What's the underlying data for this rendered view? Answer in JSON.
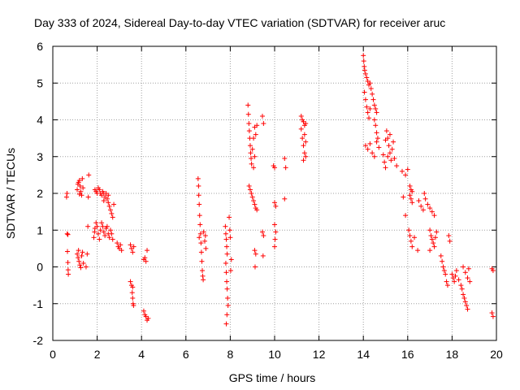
{
  "chart_data": {
    "type": "scatter",
    "title": "Day 333 of 2024, Sidereal Day-to-day VTEC variation (SDTVAR) for receiver aruc",
    "xlabel": "GPS time / hours",
    "ylabel": "SDTVAR / TECUs",
    "xlim": [
      0,
      20
    ],
    "ylim": [
      -2,
      6
    ],
    "xticks": [
      0,
      2,
      4,
      6,
      8,
      10,
      12,
      14,
      16,
      18,
      20
    ],
    "xtick_labels": [
      "0",
      "2",
      "4",
      "6",
      "8",
      "10",
      "12",
      "14",
      "16",
      "18",
      "20"
    ],
    "yticks": [
      -2,
      -1,
      0,
      1,
      2,
      3,
      4,
      5,
      6
    ],
    "ytick_labels": [
      "-2",
      "-1",
      "0",
      "1",
      "2",
      "3",
      "4",
      "5",
      "6"
    ],
    "grid": true,
    "marker": "+",
    "color": "#ff0000",
    "series": [
      {
        "name": "SDTVAR",
        "points": [
          [
            0.62,
            1.9
          ],
          [
            0.64,
            2.0
          ],
          [
            0.65,
            0.9
          ],
          [
            0.66,
            0.42
          ],
          [
            0.68,
            0.12
          ],
          [
            0.69,
            -0.08
          ],
          [
            0.7,
            -0.2
          ],
          [
            0.68,
            0.88
          ],
          [
            1.1,
            2.1
          ],
          [
            1.13,
            2.25
          ],
          [
            1.16,
            2.3
          ],
          [
            1.2,
            2.35
          ],
          [
            1.23,
            2.2
          ],
          [
            1.26,
            2.05
          ],
          [
            1.3,
            1.95
          ],
          [
            1.33,
            2.4
          ],
          [
            1.36,
            2.15
          ],
          [
            1.2,
            1.98
          ],
          [
            1.1,
            0.35
          ],
          [
            1.14,
            0.25
          ],
          [
            1.18,
            0.15
          ],
          [
            1.22,
            0.05
          ],
          [
            1.26,
            -0.02
          ],
          [
            1.3,
            0.3
          ],
          [
            1.34,
            0.4
          ],
          [
            1.16,
            0.45
          ],
          [
            1.38,
            0.1
          ],
          [
            1.5,
            0.0
          ],
          [
            1.55,
            0.35
          ],
          [
            1.58,
            1.1
          ],
          [
            1.6,
            1.9
          ],
          [
            1.62,
            2.5
          ],
          [
            1.9,
            2.1
          ],
          [
            1.95,
            2.05
          ],
          [
            2.0,
            2.0
          ],
          [
            2.05,
            2.15
          ],
          [
            2.1,
            2.1
          ],
          [
            2.15,
            2.0
          ],
          [
            2.2,
            1.95
          ],
          [
            2.25,
            2.05
          ],
          [
            2.3,
            2.0
          ],
          [
            2.35,
            1.9
          ],
          [
            2.4,
            2.0
          ],
          [
            2.45,
            1.85
          ],
          [
            2.5,
            1.75
          ],
          [
            2.55,
            1.65
          ],
          [
            2.6,
            1.55
          ],
          [
            2.65,
            1.45
          ],
          [
            2.7,
            1.35
          ],
          [
            2.75,
            1.7
          ],
          [
            2.3,
            1.8
          ],
          [
            2.5,
            1.95
          ],
          [
            1.85,
            0.8
          ],
          [
            1.88,
            0.95
          ],
          [
            1.9,
            1.05
          ],
          [
            1.95,
            1.2
          ],
          [
            2.0,
            1.1
          ],
          [
            2.05,
            0.9
          ],
          [
            2.1,
            0.75
          ],
          [
            2.15,
            1.0
          ],
          [
            2.2,
            1.2
          ],
          [
            2.25,
            1.1
          ],
          [
            2.3,
            0.95
          ],
          [
            2.35,
            0.85
          ],
          [
            2.4,
            1.05
          ],
          [
            2.45,
            1.1
          ],
          [
            2.5,
            0.9
          ],
          [
            2.55,
            0.8
          ],
          [
            2.6,
            1.0
          ],
          [
            2.65,
            0.9
          ],
          [
            2.7,
            0.75
          ],
          [
            2.9,
            0.65
          ],
          [
            2.95,
            0.55
          ],
          [
            3.0,
            0.5
          ],
          [
            3.05,
            0.6
          ],
          [
            3.1,
            0.45
          ],
          [
            3.5,
            0.6
          ],
          [
            3.55,
            0.5
          ],
          [
            3.6,
            0.4
          ],
          [
            3.65,
            0.55
          ],
          [
            3.5,
            -0.4
          ],
          [
            3.55,
            -0.5
          ],
          [
            3.6,
            -0.55
          ],
          [
            3.58,
            -0.7
          ],
          [
            3.6,
            -0.85
          ],
          [
            3.62,
            -1.0
          ],
          [
            3.64,
            -1.05
          ],
          [
            4.1,
            -1.2
          ],
          [
            4.15,
            -1.3
          ],
          [
            4.2,
            -1.35
          ],
          [
            4.25,
            -1.45
          ],
          [
            4.3,
            -1.4
          ],
          [
            4.1,
            0.2
          ],
          [
            4.15,
            0.25
          ],
          [
            4.2,
            0.15
          ],
          [
            4.25,
            0.45
          ],
          [
            6.55,
            2.4
          ],
          [
            6.57,
            2.2
          ],
          [
            6.58,
            1.95
          ],
          [
            6.6,
            1.7
          ],
          [
            6.62,
            1.4
          ],
          [
            6.64,
            1.15
          ],
          [
            6.66,
            0.9
          ],
          [
            6.68,
            0.65
          ],
          [
            6.7,
            0.4
          ],
          [
            6.72,
            0.15
          ],
          [
            6.74,
            -0.1
          ],
          [
            6.76,
            -0.25
          ],
          [
            6.78,
            -0.35
          ],
          [
            6.6,
            0.8
          ],
          [
            6.8,
            0.95
          ],
          [
            6.85,
            0.7
          ],
          [
            6.9,
            0.5
          ],
          [
            6.88,
            0.85
          ],
          [
            7.78,
            1.1
          ],
          [
            7.8,
            0.9
          ],
          [
            7.82,
            0.75
          ],
          [
            7.84,
            0.55
          ],
          [
            7.86,
            0.35
          ],
          [
            7.8,
            0.1
          ],
          [
            7.82,
            -0.15
          ],
          [
            7.84,
            -0.4
          ],
          [
            7.86,
            -0.6
          ],
          [
            7.88,
            -0.85
          ],
          [
            7.9,
            -1.05
          ],
          [
            7.85,
            -1.3
          ],
          [
            7.82,
            -1.55
          ],
          [
            7.95,
            1.35
          ],
          [
            7.98,
            1.0
          ],
          [
            8.0,
            0.8
          ],
          [
            8.02,
            -0.1
          ],
          [
            8.05,
            0.2
          ],
          [
            8.8,
            4.4
          ],
          [
            8.82,
            4.15
          ],
          [
            8.84,
            3.9
          ],
          [
            8.86,
            3.7
          ],
          [
            8.88,
            3.5
          ],
          [
            8.9,
            3.3
          ],
          [
            8.92,
            3.1
          ],
          [
            8.94,
            2.95
          ],
          [
            8.96,
            2.8
          ],
          [
            9.0,
            3.2
          ],
          [
            9.05,
            3.5
          ],
          [
            9.1,
            3.8
          ],
          [
            9.15,
            3.6
          ],
          [
            9.2,
            3.85
          ],
          [
            9.05,
            2.7
          ],
          [
            9.1,
            3.0
          ],
          [
            8.85,
            2.2
          ],
          [
            8.9,
            2.1
          ],
          [
            8.95,
            2.0
          ],
          [
            9.0,
            1.9
          ],
          [
            9.05,
            1.8
          ],
          [
            9.1,
            1.7
          ],
          [
            9.15,
            1.6
          ],
          [
            9.2,
            1.55
          ],
          [
            9.1,
            0.45
          ],
          [
            9.15,
            0.35
          ],
          [
            9.12,
            0.0
          ],
          [
            9.45,
            4.1
          ],
          [
            9.5,
            3.9
          ],
          [
            9.45,
            0.95
          ],
          [
            9.5,
            0.85
          ],
          [
            9.48,
            0.3
          ],
          [
            9.95,
            2.75
          ],
          [
            10.0,
            2.7
          ],
          [
            10.0,
            1.75
          ],
          [
            10.05,
            1.65
          ],
          [
            10.0,
            1.15
          ],
          [
            10.05,
            0.95
          ],
          [
            10.02,
            0.75
          ],
          [
            10.0,
            0.55
          ],
          [
            10.45,
            2.95
          ],
          [
            10.5,
            2.7
          ],
          [
            10.45,
            1.85
          ],
          [
            11.2,
            4.1
          ],
          [
            11.25,
            4.0
          ],
          [
            11.3,
            3.95
          ],
          [
            11.35,
            3.85
          ],
          [
            11.4,
            3.9
          ],
          [
            11.2,
            3.75
          ],
          [
            11.25,
            3.5
          ],
          [
            11.3,
            3.3
          ],
          [
            11.35,
            3.1
          ],
          [
            11.4,
            3.4
          ],
          [
            11.3,
            2.9
          ],
          [
            11.35,
            3.6
          ],
          [
            11.4,
            3.0
          ],
          [
            14.0,
            5.75
          ],
          [
            14.02,
            5.6
          ],
          [
            14.04,
            5.45
          ],
          [
            14.06,
            5.35
          ],
          [
            14.1,
            5.25
          ],
          [
            14.15,
            5.15
          ],
          [
            14.2,
            5.05
          ],
          [
            14.25,
            4.95
          ],
          [
            14.3,
            5.0
          ],
          [
            14.35,
            4.85
          ],
          [
            14.4,
            4.7
          ],
          [
            14.45,
            4.55
          ],
          [
            14.5,
            4.4
          ],
          [
            14.55,
            4.3
          ],
          [
            14.6,
            4.2
          ],
          [
            14.05,
            4.75
          ],
          [
            14.1,
            4.55
          ],
          [
            14.15,
            4.35
          ],
          [
            14.2,
            4.2
          ],
          [
            14.25,
            4.05
          ],
          [
            14.3,
            4.3
          ],
          [
            14.5,
            4.0
          ],
          [
            14.55,
            3.85
          ],
          [
            14.6,
            3.65
          ],
          [
            14.65,
            3.5
          ],
          [
            14.1,
            3.3
          ],
          [
            14.2,
            3.2
          ],
          [
            14.3,
            3.35
          ],
          [
            14.4,
            3.1
          ],
          [
            14.5,
            3.0
          ],
          [
            14.6,
            3.4
          ],
          [
            14.7,
            3.25
          ],
          [
            14.9,
            3.05
          ],
          [
            14.95,
            2.85
          ],
          [
            15.0,
            2.7
          ],
          [
            15.05,
            3.7
          ],
          [
            15.1,
            3.5
          ],
          [
            15.15,
            3.3
          ],
          [
            15.2,
            3.1
          ],
          [
            15.25,
            2.9
          ],
          [
            15.3,
            3.2
          ],
          [
            15.35,
            3.4
          ],
          [
            15.4,
            2.95
          ],
          [
            15.5,
            2.75
          ],
          [
            15.2,
            3.6
          ],
          [
            15.0,
            3.45
          ],
          [
            15.1,
            3.0
          ],
          [
            15.75,
            2.6
          ],
          [
            15.9,
            2.5
          ],
          [
            16.0,
            2.65
          ],
          [
            15.8,
            1.9
          ],
          [
            15.9,
            1.4
          ],
          [
            16.1,
            2.2
          ],
          [
            16.15,
            2.1
          ],
          [
            16.2,
            2.05
          ],
          [
            16.1,
            1.95
          ],
          [
            16.15,
            1.85
          ],
          [
            16.2,
            1.75
          ],
          [
            16.05,
            1.0
          ],
          [
            16.1,
            0.85
          ],
          [
            16.15,
            0.7
          ],
          [
            16.2,
            0.55
          ],
          [
            16.3,
            0.8
          ],
          [
            16.45,
            0.45
          ],
          [
            16.5,
            1.8
          ],
          [
            16.6,
            1.65
          ],
          [
            16.7,
            1.55
          ],
          [
            16.8,
            1.85
          ],
          [
            16.9,
            1.7
          ],
          [
            17.0,
            1.6
          ],
          [
            17.1,
            1.5
          ],
          [
            17.2,
            1.4
          ],
          [
            16.75,
            2.0
          ],
          [
            17.0,
            1.0
          ],
          [
            17.05,
            0.85
          ],
          [
            17.1,
            0.75
          ],
          [
            17.15,
            0.65
          ],
          [
            17.2,
            0.55
          ],
          [
            17.25,
            0.8
          ],
          [
            17.3,
            0.95
          ],
          [
            17.0,
            0.45
          ],
          [
            17.5,
            0.3
          ],
          [
            17.55,
            0.15
          ],
          [
            17.6,
            0.0
          ],
          [
            17.65,
            -0.1
          ],
          [
            17.7,
            -0.2
          ],
          [
            17.75,
            -0.4
          ],
          [
            17.8,
            -0.5
          ],
          [
            17.85,
            0.85
          ],
          [
            17.9,
            0.7
          ],
          [
            18.0,
            -0.2
          ],
          [
            18.05,
            -0.3
          ],
          [
            18.1,
            -0.4
          ],
          [
            18.15,
            -0.25
          ],
          [
            18.2,
            -0.1
          ],
          [
            18.3,
            -0.35
          ],
          [
            18.4,
            -0.5
          ],
          [
            18.45,
            -0.6
          ],
          [
            18.5,
            -0.75
          ],
          [
            18.55,
            -0.85
          ],
          [
            18.6,
            -0.95
          ],
          [
            18.65,
            -1.05
          ],
          [
            18.7,
            -1.15
          ],
          [
            18.5,
            0.0
          ],
          [
            18.6,
            -0.15
          ],
          [
            18.7,
            -0.3
          ],
          [
            18.8,
            -0.4
          ],
          [
            18.75,
            -0.05
          ],
          [
            19.8,
            -0.05
          ],
          [
            19.85,
            -0.1
          ],
          [
            19.8,
            -1.25
          ],
          [
            19.85,
            -1.35
          ]
        ]
      }
    ]
  }
}
